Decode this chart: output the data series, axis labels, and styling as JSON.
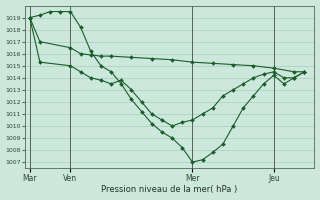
{
  "background_color": "#cce8dc",
  "grid_color": "#aaccbb",
  "line_color": "#1a5c2a",
  "ylabel": "Pression niveau de la mer( hPa )",
  "ylim": [
    1006.5,
    1020.0
  ],
  "yticks": [
    1007,
    1008,
    1009,
    1010,
    1011,
    1012,
    1013,
    1014,
    1015,
    1016,
    1017,
    1018,
    1019
  ],
  "xtick_labels": [
    "Mar",
    "Ven",
    "Mer",
    "Jeu"
  ],
  "xtick_positions": [
    0,
    24,
    96,
    144
  ],
  "xlim": [
    -3,
    168
  ],
  "line1_x": [
    0,
    6,
    24,
    30,
    36,
    42,
    48,
    60,
    72,
    84,
    96,
    108,
    120,
    132,
    144,
    156,
    162
  ],
  "line1_y": [
    1019.0,
    1017.0,
    1016.5,
    1016.0,
    1015.9,
    1015.8,
    1015.8,
    1015.7,
    1015.6,
    1015.5,
    1015.3,
    1015.2,
    1015.1,
    1015.0,
    1014.8,
    1014.5,
    1014.5
  ],
  "line2_x": [
    0,
    6,
    24,
    30,
    36,
    42,
    48,
    54,
    60,
    66,
    72,
    78,
    84,
    90,
    96,
    102,
    108,
    114,
    120,
    126,
    132,
    138,
    144,
    150,
    156,
    162
  ],
  "line2_y": [
    1019.0,
    1015.3,
    1015.0,
    1014.5,
    1014.0,
    1013.8,
    1013.5,
    1013.8,
    1013.0,
    1012.0,
    1011.0,
    1010.5,
    1010.0,
    1010.3,
    1010.5,
    1011.0,
    1011.5,
    1012.5,
    1013.0,
    1013.5,
    1014.0,
    1014.3,
    1014.5,
    1014.0,
    1014.0,
    1014.5
  ],
  "line3_x": [
    0,
    6,
    12,
    18,
    24,
    30,
    36,
    42,
    48,
    54,
    60,
    66,
    72,
    78,
    84,
    90,
    96,
    102,
    108,
    114,
    120,
    126,
    132,
    138,
    144,
    150,
    156,
    162
  ],
  "line3_y": [
    1019.0,
    1019.2,
    1019.5,
    1019.5,
    1019.5,
    1018.2,
    1016.2,
    1015.0,
    1014.5,
    1013.5,
    1012.2,
    1011.2,
    1010.2,
    1009.5,
    1009.0,
    1008.2,
    1007.0,
    1007.2,
    1007.8,
    1008.5,
    1010.0,
    1011.5,
    1012.5,
    1013.5,
    1014.2,
    1013.5,
    1014.0,
    1014.5
  ]
}
